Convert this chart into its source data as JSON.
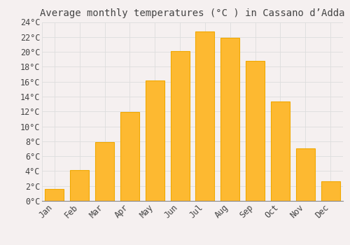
{
  "title": "Average monthly temperatures (°C ) in Cassano d’Adda",
  "months": [
    "Jan",
    "Feb",
    "Mar",
    "Apr",
    "May",
    "Jun",
    "Jul",
    "Aug",
    "Sep",
    "Oct",
    "Nov",
    "Dec"
  ],
  "values": [
    1.6,
    4.1,
    7.9,
    11.9,
    16.2,
    20.1,
    22.7,
    21.9,
    18.8,
    13.3,
    7.0,
    2.6
  ],
  "bar_color": "#FDB931",
  "bar_edge_color": "#F0A800",
  "background_color": "#F5F0F0",
  "plot_bg_color": "#F5F0F0",
  "grid_color": "#DDDDDD",
  "text_color": "#444444",
  "ylim": [
    0,
    24
  ],
  "yticks": [
    0,
    2,
    4,
    6,
    8,
    10,
    12,
    14,
    16,
    18,
    20,
    22,
    24
  ],
  "title_fontsize": 10,
  "tick_fontsize": 8.5,
  "font_family": "monospace",
  "bar_width": 0.75
}
